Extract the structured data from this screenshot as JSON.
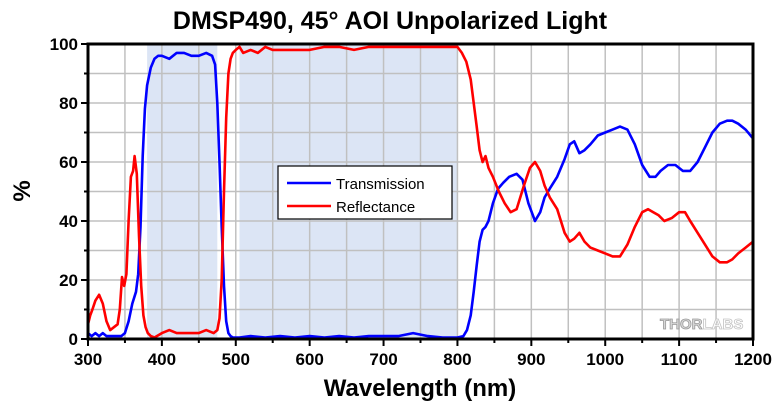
{
  "chart_data": {
    "type": "line",
    "title": "DMSP490, 45° AOI Unpolarized Light",
    "xlabel": "Wavelength (nm)",
    "ylabel": "%",
    "xlim": [
      300,
      1200
    ],
    "ylim": [
      0,
      100
    ],
    "x_ticks": [
      300,
      400,
      500,
      600,
      700,
      800,
      900,
      1000,
      1100,
      1200
    ],
    "y_ticks": [
      0,
      20,
      40,
      60,
      80,
      100
    ],
    "x_tick_labels": [
      "300",
      "400",
      "500",
      "600",
      "700",
      "800",
      "900",
      "1000",
      "1100",
      "1200"
    ],
    "y_tick_labels": [
      "0",
      "20",
      "40",
      "60",
      "80",
      "100"
    ],
    "grid": true,
    "legend_position": "center-left",
    "shaded_bands": [
      {
        "x_start": 380,
        "x_end": 475,
        "color": "#dce5f5"
      },
      {
        "x_start": 505,
        "x_end": 800,
        "color": "#dce5f5"
      }
    ],
    "series": [
      {
        "name": "Transmission",
        "color": "#0000ff",
        "x": [
          300,
          305,
          310,
          315,
          320,
          325,
          330,
          335,
          340,
          345,
          350,
          355,
          360,
          365,
          368,
          371,
          374,
          377,
          380,
          385,
          390,
          395,
          400,
          410,
          420,
          430,
          440,
          450,
          460,
          468,
          472,
          475,
          478,
          481,
          484,
          487,
          490,
          493,
          496,
          500,
          505,
          520,
          540,
          560,
          580,
          600,
          620,
          640,
          660,
          680,
          700,
          720,
          740,
          760,
          780,
          800,
          808,
          813,
          818,
          822,
          826,
          830,
          834,
          838,
          842,
          848,
          855,
          862,
          870,
          880,
          888,
          896,
          905,
          912,
          918,
          925,
          935,
          945,
          952,
          958,
          965,
          972,
          980,
          990,
          1000,
          1010,
          1020,
          1030,
          1040,
          1050,
          1060,
          1068,
          1075,
          1085,
          1095,
          1105,
          1115,
          1125,
          1135,
          1145,
          1155,
          1165,
          1172,
          1180,
          1190,
          1200
        ],
        "values": [
          2,
          1,
          2,
          1,
          2,
          1,
          1,
          1,
          1,
          1,
          2,
          6,
          12,
          16,
          22,
          38,
          62,
          78,
          86,
          92,
          95,
          96,
          96,
          95,
          97,
          97,
          96,
          96,
          97,
          96,
          93,
          80,
          60,
          38,
          18,
          6,
          2,
          1,
          0.5,
          0.5,
          0.5,
          1,
          0.5,
          1,
          0.5,
          1,
          0.5,
          1,
          0.5,
          1,
          1,
          1,
          2,
          1,
          0.5,
          0.5,
          1,
          3,
          8,
          16,
          25,
          33,
          37,
          38,
          40,
          46,
          51,
          53,
          55,
          56,
          54,
          46,
          40,
          43,
          48,
          51,
          55,
          61,
          66,
          67,
          63,
          64,
          66,
          69,
          70,
          71,
          72,
          71,
          66,
          59,
          55,
          55,
          57,
          59,
          59,
          57,
          57,
          60,
          65,
          70,
          73,
          74,
          74,
          73,
          71,
          68
        ]
      },
      {
        "name": "Reflectance",
        "color": "#ff0000",
        "x": [
          300,
          303,
          306,
          310,
          315,
          320,
          325,
          330,
          335,
          340,
          343,
          346,
          349,
          352,
          355,
          358,
          361,
          363,
          366,
          369,
          372,
          375,
          378,
          381,
          385,
          390,
          400,
          410,
          420,
          430,
          440,
          450,
          460,
          470,
          475,
          478,
          481,
          484,
          487,
          490,
          493,
          496,
          500,
          505,
          510,
          520,
          530,
          540,
          550,
          560,
          580,
          600,
          620,
          640,
          660,
          680,
          700,
          720,
          740,
          760,
          780,
          790,
          800,
          806,
          812,
          818,
          822,
          826,
          830,
          834,
          838,
          842,
          848,
          856,
          864,
          872,
          880,
          890,
          898,
          905,
          912,
          918,
          925,
          935,
          945,
          952,
          958,
          965,
          972,
          980,
          990,
          1000,
          1010,
          1020,
          1030,
          1040,
          1050,
          1058,
          1065,
          1072,
          1080,
          1090,
          1100,
          1108,
          1115,
          1125,
          1135,
          1145,
          1155,
          1165,
          1172,
          1180,
          1190,
          1200
        ],
        "values": [
          5,
          8,
          10,
          13,
          15,
          12,
          6,
          3,
          4,
          5,
          10,
          21,
          18,
          22,
          40,
          55,
          57,
          62,
          56,
          35,
          18,
          8,
          4,
          2,
          1,
          0.5,
          2,
          3,
          2,
          2,
          2,
          2,
          3,
          2,
          3,
          7,
          20,
          50,
          75,
          90,
          95,
          97,
          98,
          99,
          97,
          98,
          97,
          99,
          98,
          98,
          98,
          98,
          99,
          99,
          98,
          99,
          99,
          99,
          99,
          99,
          99,
          99,
          99,
          97,
          94,
          88,
          80,
          72,
          64,
          60,
          62,
          58,
          55,
          50,
          46,
          43,
          44,
          52,
          58,
          60,
          57,
          52,
          48,
          44,
          36,
          33,
          34,
          36,
          33,
          31,
          30,
          29,
          28,
          28,
          32,
          38,
          43,
          44,
          43,
          42,
          40,
          41,
          43,
          43,
          40,
          36,
          32,
          28,
          26,
          26,
          27,
          29,
          31,
          33
        ]
      }
    ]
  },
  "logo": {
    "text_dark": "THOR",
    "text_light": "LABS"
  }
}
